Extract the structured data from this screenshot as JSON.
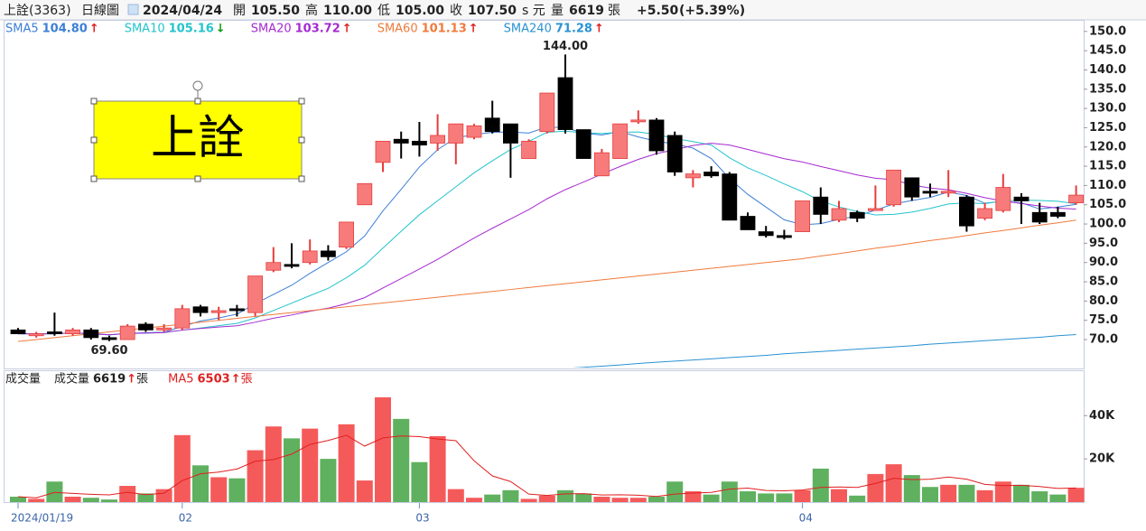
{
  "header": {
    "items": [
      "上詮(3363)",
      "日線圖",
      "2024/04/24",
      "開",
      "105.50",
      "高",
      "110.00",
      "低",
      "105.00",
      "收",
      "107.50",
      "s 元",
      "量",
      "6619",
      "張",
      "+5.50",
      "(+5.39%)"
    ]
  },
  "annotation": "上詮",
  "chart_data": [
    {
      "type": "candlestick",
      "categories": [
        "2024/01/19",
        null,
        null,
        null,
        null,
        null,
        null,
        null,
        null,
        "02",
        null,
        null,
        null,
        null,
        null,
        null,
        null,
        null,
        null,
        null,
        null,
        null,
        "03",
        null,
        null,
        null,
        null,
        null,
        null,
        null,
        null,
        null,
        null,
        null,
        null,
        null,
        null,
        null,
        null,
        null,
        null,
        null,
        null,
        "04",
        null,
        null,
        null,
        null,
        null,
        null,
        null,
        null,
        null,
        null,
        null,
        null,
        null,
        null,
        null
      ],
      "open": [
        72.5,
        71,
        72,
        71.5,
        72.5,
        70.5,
        70,
        74,
        72.5,
        73,
        78.5,
        77,
        78,
        77,
        88,
        89.5,
        90,
        93,
        94,
        105,
        116,
        122,
        121.5,
        121,
        121,
        122.5,
        127.5,
        126,
        117,
        124,
        138,
        124.5,
        112.5,
        117,
        127,
        127,
        123,
        112,
        113.5,
        113,
        102,
        98,
        97,
        98,
        107,
        101,
        103,
        103.5,
        105,
        112,
        108.5,
        108.5,
        107,
        101.5,
        103.5,
        107,
        103,
        103,
        105.5
      ],
      "high": [
        73,
        72,
        77,
        73,
        73,
        71,
        74,
        74.5,
        74,
        79,
        79,
        78.5,
        79,
        86.5,
        94,
        95,
        96,
        94.5,
        100.5,
        110.5,
        121.5,
        124,
        126.5,
        128.5,
        126,
        126,
        132,
        126,
        122,
        134,
        144,
        124.5,
        119.5,
        126,
        129.5,
        127.5,
        124,
        114,
        115,
        113.5,
        103,
        99.5,
        98.5,
        106,
        109.5,
        106,
        103.5,
        110,
        114,
        112,
        110.5,
        114,
        107.5,
        105.5,
        113,
        108,
        105.5,
        104.5,
        110
      ],
      "low": [
        71.5,
        70.5,
        71,
        71,
        70,
        69.6,
        70,
        72,
        72,
        72.5,
        76,
        75,
        76,
        76,
        87.5,
        88.5,
        89.5,
        90.5,
        93.5,
        105,
        113.5,
        117,
        117.5,
        119,
        115.5,
        122,
        123.5,
        112,
        117,
        123.5,
        123.5,
        117,
        112.5,
        117,
        126,
        118,
        112.5,
        109.5,
        112,
        101,
        98.5,
        96.5,
        96,
        98,
        100,
        100.5,
        100.5,
        103.5,
        104.5,
        106,
        107,
        107,
        98,
        101,
        103,
        100,
        100,
        101.5,
        105
      ],
      "close": [
        71.5,
        71.5,
        71.5,
        72.5,
        70.5,
        70,
        73.5,
        72.5,
        73,
        78,
        77,
        77.5,
        77.5,
        86.5,
        90,
        89,
        93,
        91.5,
        100.5,
        110.5,
        121.5,
        121,
        120.5,
        123,
        126,
        125.5,
        124,
        121,
        121.5,
        134,
        124.5,
        117,
        118.5,
        126,
        127,
        119,
        113.5,
        113,
        112.5,
        101,
        98.5,
        97,
        96.5,
        106,
        102.5,
        104,
        101.5,
        104,
        114,
        107,
        108,
        108.5,
        99.5,
        104,
        109.5,
        106,
        100.5,
        102,
        107.5
      ],
      "high_label": "144.00",
      "low_label": "69.60",
      "up_color": "#f77b7b",
      "up_stroke": "#e63c3c",
      "down_color": "#000000",
      "ylim": [
        62.5,
        153
      ],
      "yticks": [
        {
          "value": 70,
          "label": "70.0"
        },
        {
          "value": 75,
          "label": "75.0"
        },
        {
          "value": 80,
          "label": "80.0"
        },
        {
          "value": 85,
          "label": "85.0"
        },
        {
          "value": 90,
          "label": "90.0"
        },
        {
          "value": 95,
          "label": "95.0"
        },
        {
          "value": 100,
          "label": "100.0"
        },
        {
          "value": 105,
          "label": "105.0"
        },
        {
          "value": 110,
          "label": "110.0"
        },
        {
          "value": 115,
          "label": "115.0"
        },
        {
          "value": 120,
          "label": "120.0"
        },
        {
          "value": 125,
          "label": "125.0"
        },
        {
          "value": 130,
          "label": "130.0"
        },
        {
          "value": 135,
          "label": "135.0"
        },
        {
          "value": 140,
          "label": "140.0"
        },
        {
          "value": 145,
          "label": "145.0"
        },
        {
          "value": 150,
          "label": "150.0"
        }
      ],
      "series": [
        {
          "name": "SMA5",
          "value_label": "104.80",
          "arrow": "↑",
          "arrow_color": "#e02020",
          "color": "#3c7fd6"
        },
        {
          "name": "SMA10",
          "value_label": "105.16",
          "arrow": "↓",
          "arrow_color": "#119911",
          "color": "#22c4cc"
        },
        {
          "name": "SMA20",
          "value_label": "103.72",
          "arrow": "↑",
          "arrow_color": "#e02020",
          "color": "#a52ad0"
        },
        {
          "name": "SMA60",
          "value_label": "101.13",
          "arrow": "↑",
          "arrow_color": "#e02020",
          "color": "#f07a3c",
          "values": [
            69.5,
            70,
            70.5,
            71,
            71.5,
            72,
            72.5,
            73,
            73.5,
            74,
            74.5,
            75,
            75.5,
            76,
            76.5,
            77,
            77.5,
            78,
            78.5,
            79,
            79.5,
            80,
            80.5,
            81,
            81.5,
            82,
            82.5,
            83,
            83.5,
            84,
            84.5,
            85,
            85.5,
            86,
            86.5,
            87,
            87.5,
            88,
            88.5,
            89,
            89.5,
            90,
            90.5,
            91,
            91.7,
            92.3,
            93,
            93.7,
            94.3,
            95,
            95.7,
            96.3,
            97,
            97.7,
            98.3,
            99,
            99.7,
            100.3,
            101
          ]
        },
        {
          "name": "SMA240",
          "value_label": "71.28",
          "arrow": "↑",
          "arrow_color": "#e02020",
          "color": "#2a92d2",
          "values": [
            null,
            null,
            null,
            null,
            null,
            null,
            null,
            null,
            null,
            null,
            null,
            null,
            null,
            null,
            null,
            null,
            null,
            null,
            null,
            null,
            null,
            null,
            null,
            null,
            null,
            null,
            null,
            null,
            null,
            null,
            62.5,
            62.8,
            63.1,
            63.4,
            63.8,
            64.1,
            64.4,
            64.7,
            65.0,
            65.3,
            65.6,
            65.9,
            66.3,
            66.6,
            66.9,
            67.2,
            67.5,
            67.8,
            68.1,
            68.4,
            68.8,
            69.1,
            69.4,
            69.7,
            70.0,
            70.3,
            70.6,
            71.0,
            71.3
          ]
        }
      ]
    },
    {
      "type": "bar",
      "title": "成交量",
      "values": [
        2500,
        1500,
        9500,
        2500,
        2000,
        1200,
        7500,
        4000,
        6000,
        31000,
        17000,
        11500,
        11000,
        24000,
        35000,
        29500,
        34000,
        20000,
        36000,
        10000,
        48500,
        38500,
        18500,
        30500,
        6000,
        2000,
        3500,
        5500,
        1500,
        3000,
        5500,
        4000,
        2500,
        2000,
        2000,
        2500,
        9500,
        5000,
        3500,
        9500,
        5000,
        4000,
        4000,
        5500,
        15500,
        6000,
        3000,
        13000,
        17500,
        12500,
        7000,
        8000,
        8000,
        5500,
        9500,
        8000,
        5000,
        3500,
        6619
      ],
      "up_color": "#f55a5a",
      "down_color": "#5fb15f",
      "ylim": [
        0,
        61000
      ],
      "yticks": [
        {
          "value": 20000,
          "label": "20K"
        },
        {
          "value": 40000,
          "label": "40K"
        }
      ],
      "series": [
        {
          "name": "成交量",
          "value_label": "6619",
          "arrow": "↑",
          "arrow_color": "#e02020",
          "unit": "張",
          "color": "#222222"
        },
        {
          "name": "MA5",
          "value_label": "6503",
          "arrow": "↑",
          "arrow_color": "#e02020",
          "unit": "張",
          "color": "#e02020"
        }
      ]
    }
  ]
}
